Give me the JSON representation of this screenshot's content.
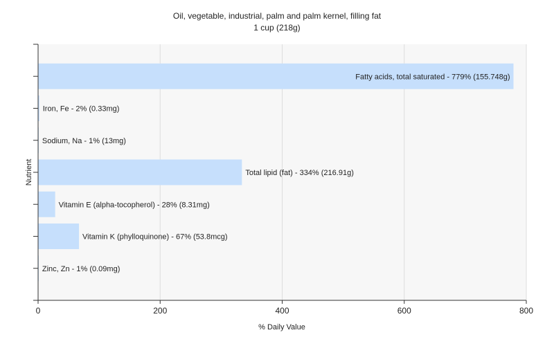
{
  "chart_data": {
    "type": "bar",
    "orientation": "horizontal",
    "title": "Oil, vegetable, industrial, palm and palm kernel, filling fat",
    "subtitle": "1 cup (218g)",
    "xlabel": "% Daily Value",
    "ylabel": "Nutrient",
    "xlim": [
      0,
      800
    ],
    "xticks": [
      0,
      200,
      400,
      600,
      800
    ],
    "grid": true,
    "bar_color": "#c6dffc",
    "categories": [
      "Fatty acids, total saturated",
      "Iron, Fe",
      "Sodium, Na",
      "Total lipid (fat)",
      "Vitamin E (alpha-tocopherol)",
      "Vitamin K (phylloquinone)",
      "Zinc, Zn"
    ],
    "values": [
      779,
      2,
      1,
      334,
      28,
      67,
      1
    ],
    "labels": [
      "Fatty acids, total saturated - 779% (155.748g)",
      "Iron, Fe - 2% (0.33mg)",
      "Sodium, Na - 1% (13mg)",
      "Total lipid (fat) - 334% (216.91g)",
      "Vitamin E (alpha-tocopherol) - 28% (8.31mg)",
      "Vitamin K (phylloquinone) - 67% (53.8mcg)",
      "Zinc, Zn - 1% (0.09mg)"
    ]
  }
}
